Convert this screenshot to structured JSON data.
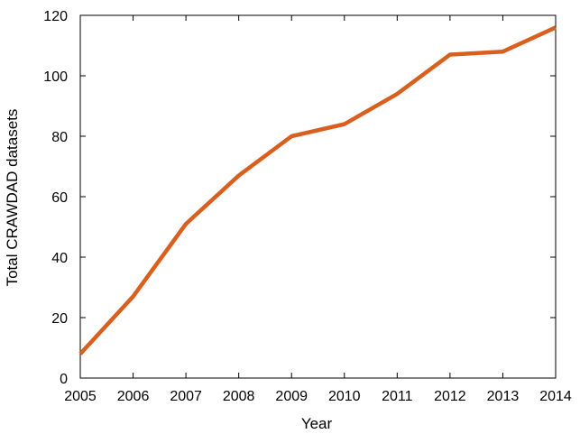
{
  "chart_data": {
    "type": "line",
    "title": "",
    "xlabel": "Year",
    "ylabel": "Total CRAWDAD datasets",
    "x": [
      2005,
      2006,
      2007,
      2008,
      2009,
      2010,
      2011,
      2012,
      2013,
      2014
    ],
    "xlim": [
      2005,
      2014
    ],
    "ylim": [
      0,
      120
    ],
    "x_ticks": [
      2005,
      2006,
      2007,
      2008,
      2009,
      2010,
      2011,
      2012,
      2013,
      2014
    ],
    "y_ticks": [
      0,
      20,
      40,
      60,
      80,
      100,
      120
    ],
    "grid": false,
    "legend": "none",
    "series": [
      {
        "color": "#d95f1e",
        "values": [
          8,
          27,
          51,
          67,
          80,
          84,
          94,
          107,
          108,
          116
        ]
      }
    ]
  }
}
